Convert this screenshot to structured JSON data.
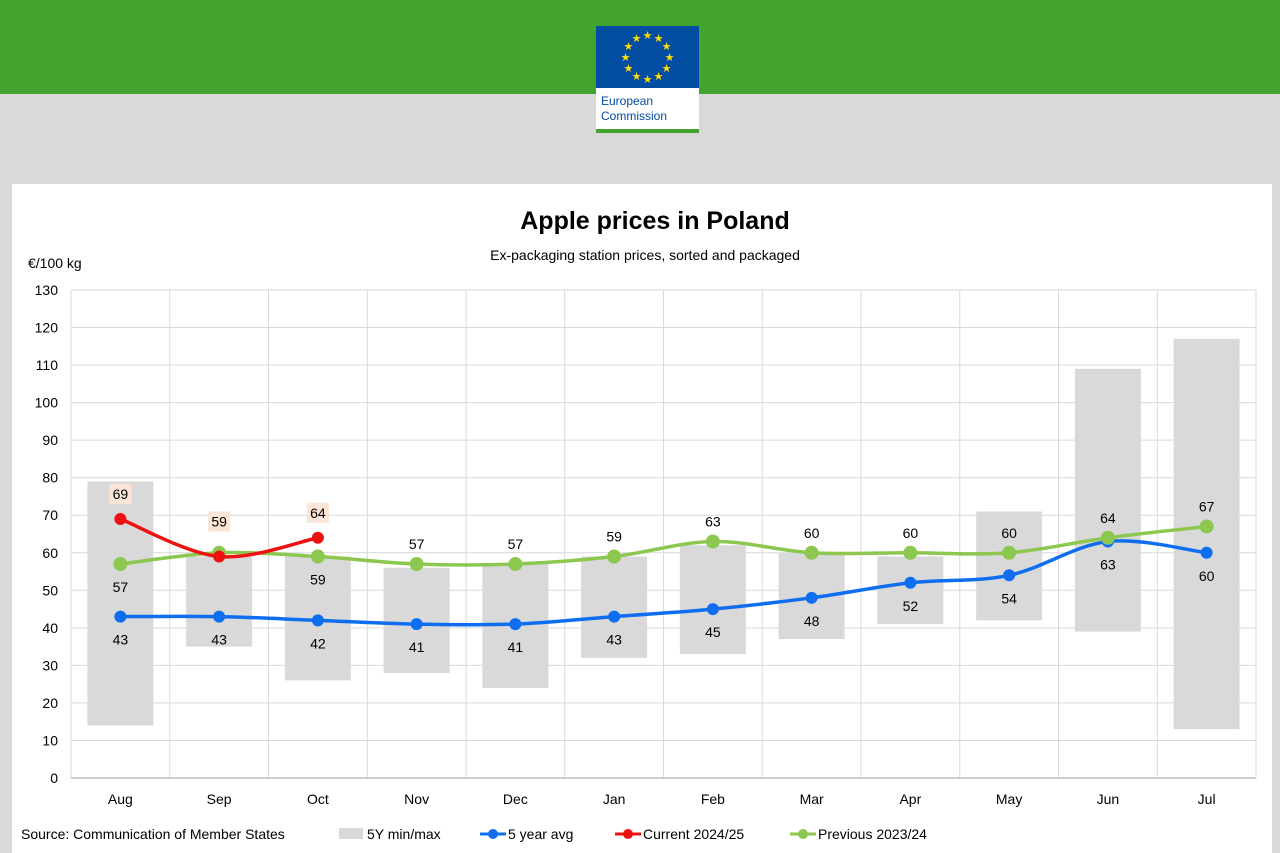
{
  "header": {
    "logo_text_line1": "European",
    "logo_text_line2": "Commission"
  },
  "chart_data": {
    "type": "line",
    "title": "Apple prices in Poland",
    "subtitle": "Ex-packaging station prices, sorted and packaged",
    "ylabel": "€/100 kg",
    "ylim": [
      0,
      130
    ],
    "yticks": [
      0,
      10,
      20,
      30,
      40,
      50,
      60,
      70,
      80,
      90,
      100,
      110,
      120,
      130
    ],
    "grid": true,
    "legend_position": "bottom",
    "categories": [
      "Aug",
      "Sep",
      "Oct",
      "Nov",
      "Dec",
      "Jan",
      "Feb",
      "Mar",
      "Apr",
      "May",
      "Jun",
      "Jul"
    ],
    "range_series": {
      "name": "5Y min/max",
      "color": "#d9d9d9",
      "min": [
        14,
        35,
        26,
        28,
        24,
        32,
        33,
        37,
        41,
        42,
        39,
        13
      ],
      "max": [
        79,
        59,
        59,
        56,
        57,
        59,
        62,
        60,
        59,
        71,
        109,
        117
      ]
    },
    "series": [
      {
        "name": "5 year avg",
        "color": "#0f6ef0",
        "values": [
          43,
          43,
          42,
          41,
          41,
          43,
          45,
          48,
          52,
          54,
          63,
          60
        ]
      },
      {
        "name": "Current 2024/25",
        "color": "#ee1111",
        "values": [
          69,
          59,
          64,
          null,
          null,
          null,
          null,
          null,
          null,
          null,
          null,
          null
        ]
      },
      {
        "name": "Previous 2023/24",
        "color": "#8cc850",
        "values": [
          57,
          60,
          59,
          57,
          57,
          59,
          63,
          60,
          60,
          60,
          64,
          67
        ]
      }
    ],
    "source": "Source: Communication  of Member States"
  }
}
